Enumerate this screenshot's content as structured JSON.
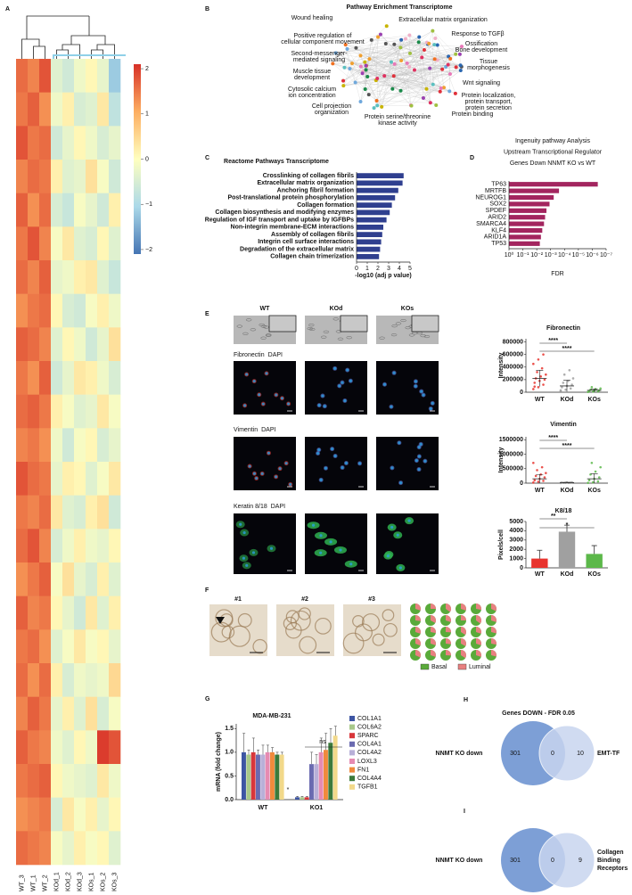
{
  "figure": {
    "panel_labels": [
      "A",
      "B",
      "C",
      "D",
      "E",
      "F",
      "G",
      "H",
      "I"
    ]
  },
  "chart_data": [
    {
      "type": "heatmap",
      "columns": [
        "WT_3",
        "WT_1",
        "WT_2",
        "KOd_1",
        "KOd_2",
        "KOd_3",
        "KOs_1",
        "KOs_2",
        "KOs_3"
      ],
      "values": [
        [
          1.6,
          1.4,
          1.8,
          -0.4,
          -0.6,
          -0.2,
          0.1,
          -0.3,
          -1.2
        ],
        [
          1.5,
          1.7,
          1.3,
          -0.2,
          0.2,
          -0.5,
          -0.4,
          0.3,
          -0.8
        ],
        [
          1.8,
          1.5,
          1.6,
          -0.6,
          -0.3,
          0.1,
          -0.2,
          -0.5,
          -0.3
        ],
        [
          1.4,
          1.6,
          1.5,
          0.2,
          -0.4,
          -0.3,
          0.4,
          -0.1,
          -0.6
        ],
        [
          1.7,
          1.3,
          1.6,
          -0.5,
          -0.7,
          -0.1,
          -0.3,
          -0.6,
          0.2
        ],
        [
          1.5,
          1.8,
          1.4,
          -0.1,
          0.3,
          -0.4,
          -0.5,
          0.1,
          -0.4
        ],
        [
          1.6,
          1.4,
          1.7,
          -0.3,
          -0.2,
          0.2,
          0.3,
          -0.4,
          -0.7
        ],
        [
          1.3,
          1.5,
          1.6,
          0.1,
          -0.5,
          -0.6,
          -0.1,
          0.2,
          -0.2
        ],
        [
          1.7,
          1.6,
          1.4,
          -0.4,
          0.1,
          -0.2,
          -0.6,
          -0.3,
          0.4
        ],
        [
          1.5,
          1.3,
          1.7,
          -0.6,
          -0.3,
          0.3,
          0.2,
          -0.2,
          -0.5
        ],
        [
          1.6,
          1.7,
          1.5,
          0.2,
          -0.1,
          -0.4,
          -0.3,
          0.3,
          -0.1
        ],
        [
          1.4,
          1.5,
          1.3,
          -0.2,
          -0.6,
          -0.1,
          0.1,
          -0.5,
          -0.3
        ],
        [
          1.8,
          1.6,
          1.5,
          -0.3,
          0.2,
          0.1,
          -0.4,
          -0.1,
          0.3
        ],
        [
          1.5,
          1.4,
          1.6,
          0.3,
          -0.4,
          -0.5,
          0.2,
          0.4,
          -0.6
        ],
        [
          1.6,
          1.8,
          1.4,
          -0.5,
          -0.2,
          0.2,
          -0.2,
          -0.3,
          0.1
        ],
        [
          1.3,
          1.5,
          1.7,
          -0.1,
          0.4,
          -0.3,
          -0.5,
          0.2,
          -0.4
        ],
        [
          1.7,
          1.4,
          1.5,
          0.1,
          -0.3,
          -0.6,
          0.3,
          -0.4,
          0.2
        ],
        [
          1.5,
          1.6,
          1.3,
          -0.4,
          -0.1,
          0.3,
          -0.1,
          0.1,
          -0.3
        ],
        [
          1.6,
          1.3,
          1.6,
          0.2,
          -0.5,
          -0.2,
          -0.3,
          -0.2,
          0.5
        ],
        [
          1.4,
          1.7,
          1.5,
          -0.3,
          0.2,
          -0.4,
          0.4,
          -0.5,
          -0.1
        ],
        [
          1.7,
          1.5,
          1.4,
          -0.2,
          -0.4,
          0.1,
          -0.2,
          2.0,
          1.8
        ],
        [
          1.5,
          1.6,
          1.7,
          0.1,
          -0.2,
          -0.3,
          -0.4,
          0.3,
          -0.2
        ],
        [
          1.3,
          1.4,
          1.5,
          -0.5,
          0.3,
          -0.1,
          0.2,
          -0.3,
          0.1
        ],
        [
          1.6,
          1.5,
          1.4,
          -0.1,
          -0.3,
          0.2,
          -0.1,
          0.1,
          -0.4
        ]
      ],
      "colors": [
        "#4575b4",
        "#abd9e9",
        "#ffffbf",
        "#fdae61",
        "#d73027"
      ],
      "colorbar_lim": [
        -2.1,
        2.1
      ],
      "colorbar_ticks": [
        2,
        1,
        0,
        {
          "value": -1,
          "label": "−1"
        },
        {
          "value": -2,
          "label": "−2"
        }
      ]
    },
    {
      "type": "bar",
      "orientation": "horizontal",
      "title": "Reactome Pathways Transcriptome",
      "categories": [
        "Crosslinking of collagen fibrils",
        "Extracellular matrix organization",
        "Anchoring fibril formation",
        "Post-translational protein phosphorylation",
        "Collagen formation",
        "Collagen biosynthesis and modifying enzymes",
        "Regulation of IGF transport and uptake by IGFBPs",
        "Non-integrin membrane-ECM interactions",
        "Assembly of collagen fibrils",
        "Integrin cell surface interactions",
        "Degradation of the extracellular matrix",
        "Collagen chain trimerization"
      ],
      "values": [
        4.4,
        4.3,
        3.9,
        3.6,
        3.3,
        3.1,
        2.8,
        2.5,
        2.4,
        2.3,
        2.2,
        2.1
      ],
      "color": "#2f3f8f",
      "xlabel": "-log10 (adj p value)",
      "xlim": [
        0,
        5
      ],
      "xticks": [
        0,
        1,
        2,
        3,
        4,
        5
      ]
    },
    {
      "type": "bar",
      "orientation": "horizontal",
      "title_lines": [
        "Ingenuity pathway Analysis",
        "Upstream Transcriptional Regulator",
        "Genes Down NNMT KO vs WT"
      ],
      "categories": [
        "TP63",
        "MRTFB",
        "NEUROG1",
        "SOX2",
        "SPDEF",
        "ARID2",
        "SMARCA4",
        "KLF4",
        "ARID1A",
        "TP53"
      ],
      "values": [
        4e-07,
        0.00025,
        0.0006,
        0.0012,
        0.002,
        0.0025,
        0.003,
        0.004,
        0.005,
        0.006
      ],
      "color": "#a3255f",
      "xlabel": "FDR",
      "xscale": "log",
      "xlim": [
        1,
        1e-07
      ],
      "xticks": [
        {
          "value": 1,
          "label": "10⁰"
        },
        {
          "value": 0.1,
          "label": "10⁻¹"
        },
        {
          "value": 0.01,
          "label": "10⁻²"
        },
        {
          "value": 0.001,
          "label": "10⁻³"
        },
        {
          "value": 0.0001,
          "label": "10⁻⁴"
        },
        {
          "value": 1e-05,
          "label": "10⁻⁵"
        },
        {
          "value": 1e-06,
          "label": "10⁻⁶"
        },
        {
          "value": 1e-07,
          "label": "10⁻⁷"
        }
      ]
    },
    {
      "type": "dot_plot",
      "title": "Fibronectin",
      "ylabel": "Intensity",
      "categories": [
        "WT",
        "KOd",
        "KOs"
      ],
      "colors": [
        "#e8342e",
        "#a0a0a0",
        "#5cb84a"
      ],
      "points": [
        [
          50000,
          80000,
          120000,
          150000,
          180000,
          200000,
          220000,
          250000,
          280000,
          320000,
          380000,
          450000,
          520000,
          600000,
          90000
        ],
        [
          20000,
          40000,
          60000,
          80000,
          100000,
          120000,
          150000,
          180000,
          220000,
          280000,
          350000,
          30000
        ],
        [
          5000,
          10000,
          15000,
          20000,
          25000,
          30000,
          40000,
          50000,
          60000,
          80000
        ]
      ],
      "means": [
        220000,
        100000,
        30000
      ],
      "sd": [
        130000,
        90000,
        20000
      ],
      "ylim": [
        0,
        850000
      ],
      "yticks": [
        0,
        200000,
        400000,
        600000,
        800000
      ],
      "significance": [
        "****",
        "****"
      ]
    },
    {
      "type": "dot_plot",
      "title": "Vimentin",
      "ylabel": "Intensity",
      "categories": [
        "WT",
        "KOd",
        "KOs"
      ],
      "colors": [
        "#e8342e",
        "#a0a0a0",
        "#5cb84a"
      ],
      "points": [
        [
          20000,
          50000,
          80000,
          100000,
          150000,
          200000,
          250000,
          300000,
          350000,
          450000,
          550000,
          700000
        ],
        [
          5000,
          10000,
          15000,
          20000,
          25000,
          30000
        ],
        [
          10000,
          30000,
          60000,
          100000,
          150000,
          200000,
          300000,
          400000,
          550000,
          700000
        ]
      ],
      "means": [
        150000,
        20000,
        150000
      ],
      "sd": [
        150000,
        10000,
        180000
      ],
      "ylim": [
        0,
        1600000
      ],
      "yticks": [
        0,
        500000,
        1000000,
        1500000
      ],
      "significance": [
        "****",
        "****"
      ]
    },
    {
      "type": "bar",
      "title": "K8/18",
      "ylabel": "Pixels/cell",
      "categories": [
        "WT",
        "KOd",
        "KOs"
      ],
      "values": [
        1000,
        3900,
        1500
      ],
      "errors": [
        900,
        700,
        900
      ],
      "colors": [
        "#e8342e",
        "#a0a0a0",
        "#5cb84a"
      ],
      "ylim": [
        0,
        5000
      ],
      "yticks": [
        0,
        1000,
        2000,
        3000,
        4000,
        5000
      ],
      "significance": [
        "**",
        "*"
      ]
    },
    {
      "type": "grouped_bar",
      "title": "MDA-MB-231",
      "ylabel": "mRNA (fold change)",
      "categories": [
        "WT",
        "KO1"
      ],
      "series": [
        {
          "name": "COL1A1",
          "color": "#3d55a3",
          "values": [
            1.0,
            0.05
          ],
          "errors": [
            0.4,
            0.02
          ]
        },
        {
          "name": "COL6A2",
          "color": "#a8c88a",
          "values": [
            0.95,
            0.05
          ],
          "errors": [
            0.1,
            0.02
          ]
        },
        {
          "name": "SPARC",
          "color": "#d8363a",
          "values": [
            1.0,
            0.05
          ],
          "errors": [
            0.3,
            0.02
          ]
        },
        {
          "name": "COL4A1",
          "color": "#6a6ab0",
          "values": [
            0.95,
            0.75
          ],
          "errors": [
            0.1,
            0.25
          ]
        },
        {
          "name": "COL4A2",
          "color": "#b8b0d8",
          "values": [
            0.95,
            0.75
          ],
          "errors": [
            0.2,
            0.2
          ]
        },
        {
          "name": "LOXL3",
          "color": "#e68bb2",
          "values": [
            1.0,
            1.0
          ],
          "errors": [
            0.15,
            0.3
          ]
        },
        {
          "name": "FN1",
          "color": "#f08a3c",
          "values": [
            1.0,
            1.05
          ],
          "errors": [
            0.1,
            0.35
          ]
        },
        {
          "name": "COL4A4",
          "color": "#3b7a3b",
          "values": [
            0.95,
            1.2
          ],
          "errors": [
            0.05,
            0.3
          ]
        },
        {
          "name": "TGFB1",
          "color": "#f2d98a",
          "values": [
            0.95,
            1.35
          ],
          "errors": [
            0.05,
            0.2
          ]
        }
      ],
      "ylim": [
        0,
        1.6
      ],
      "yticks": [
        {
          "value": 0,
          "label": "0.0"
        },
        {
          "value": 0.5,
          "label": "0.5"
        },
        {
          "value": 1,
          "label": "1.0"
        },
        {
          "value": 1.5,
          "label": "1.5"
        }
      ],
      "annotations": [
        "*",
        "ns"
      ]
    }
  ],
  "network": {
    "title": "Pathway Enrichment Transcriptome",
    "labels": [
      {
        "lines": [
          "Wound healing"
        ],
        "color": "#6fa8dc"
      },
      {
        "lines": [
          "Extracellular matrix organization"
        ],
        "color": "#e0303a"
      },
      {
        "lines": [
          "Positive regulation of",
          "cellular component movement"
        ],
        "color": "#2a66b0"
      },
      {
        "lines": [
          "Response to TGFβ"
        ],
        "color": "#f0a030"
      },
      {
        "lines": [
          "Ossification",
          "Bone development"
        ],
        "color": "#f0b0c8"
      },
      {
        "lines": [
          "Second-messenger-",
          "mediated signaling"
        ],
        "color": "#e879b8"
      },
      {
        "lines": [
          "Tissue",
          "morphogenesis"
        ],
        "color": "#c8b400"
      },
      {
        "lines": [
          "Muscle tissue",
          "development"
        ],
        "color": "#f07020"
      },
      {
        "lines": [
          "Wnt signaling"
        ],
        "color": "#e03060"
      },
      {
        "lines": [
          "Cytosolic calcium",
          "ion concentration"
        ],
        "color": "#a0c040"
      },
      {
        "lines": [
          "Protein localization,",
          "protein transport,",
          "protein secretion"
        ],
        "color": "#555555"
      },
      {
        "lines": [
          "Cell projection",
          "organization"
        ],
        "color": "#1a8a4a"
      },
      {
        "lines": [
          "Protein binding"
        ],
        "color": "#5cc0c0"
      },
      {
        "lines": [
          "Protein serine/threonine",
          "kinase activity"
        ],
        "color": "#9a40b0"
      }
    ]
  },
  "panel_e": {
    "columns": [
      "WT",
      "KOd",
      "KOs"
    ],
    "rows": [
      {
        "stain": "Fibronectin",
        "color": "#e8342e",
        "counterstain": "DAPI",
        "counter_color": "#2aa0e0"
      },
      {
        "stain": "Vimentin",
        "color": "#e8342e",
        "counterstain": "DAPI",
        "counter_color": "#2aa0e0"
      },
      {
        "stain": "Keratin 8/18",
        "color": "#2fb050",
        "counterstain": "DAPI",
        "counter_color": "#2aa0e0"
      }
    ]
  },
  "panel_f": {
    "labels": [
      "#1",
      "#2",
      "#3"
    ],
    "luminal_fraction": [
      0.3,
      0.25,
      0.35,
      0.3,
      0.28,
      0.32,
      0.27,
      0.33,
      0.3,
      0.25,
      0.35,
      0.3,
      0.3,
      0.28,
      0.26,
      0.34,
      0.3,
      0.29,
      0.31,
      0.3,
      0.27,
      0.33,
      0.3,
      0.28,
      0.32,
      0.3,
      0.26,
      0.34,
      0.3,
      0.29
    ],
    "legend": [
      {
        "name": "Basal",
        "color": "#5aaa3a"
      },
      {
        "name": "Luminal",
        "color": "#e88080"
      }
    ]
  },
  "venn": [
    {
      "title": "Genes DOWN - FDR 0.05",
      "left_label": [
        "NNMT KO down"
      ],
      "right_label": [
        "EMT-TF"
      ],
      "counts": [
        301,
        0,
        10
      ]
    },
    {
      "left_label": [
        "NNMT KO down"
      ],
      "right_label": [
        "Collagen",
        "Binding",
        "Receptors"
      ],
      "counts": [
        301,
        0,
        9
      ]
    }
  ]
}
